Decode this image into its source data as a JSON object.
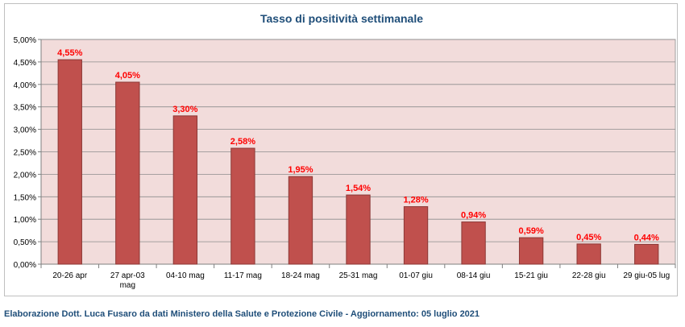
{
  "chart_data": {
    "type": "bar",
    "title": "Tasso di positività settimanale",
    "categories": [
      "20-26 apr",
      "27 apr-03 mag",
      "04-10 mag",
      "11-17 mag",
      "18-24 mag",
      "25-31 mag",
      "01-07 giu",
      "08-14 giu",
      "15-21 giu",
      "22-28 giu",
      "29 giu-05 lug"
    ],
    "category_lines": [
      [
        "20-26 apr"
      ],
      [
        "27 apr-03",
        "mag"
      ],
      [
        "04-10 mag"
      ],
      [
        "11-17 mag"
      ],
      [
        "18-24 mag"
      ],
      [
        "25-31 mag"
      ],
      [
        "01-07 giu"
      ],
      [
        "08-14 giu"
      ],
      [
        "15-21 giu"
      ],
      [
        "22-28 giu"
      ],
      [
        "29 giu-05 lug"
      ]
    ],
    "values": [
      4.55,
      4.05,
      3.3,
      2.58,
      1.95,
      1.54,
      1.28,
      0.94,
      0.59,
      0.45,
      0.44
    ],
    "data_labels": [
      "4,55%",
      "4,05%",
      "3,30%",
      "2,58%",
      "1,95%",
      "1,54%",
      "1,28%",
      "0,94%",
      "0,59%",
      "0,45%",
      "0,44%"
    ],
    "ylim": [
      0,
      5
    ],
    "yticks": [
      0,
      0.5,
      1,
      1.5,
      2,
      2.5,
      3,
      3.5,
      4,
      4.5,
      5
    ],
    "ytick_labels": [
      "0,00%",
      "0,50%",
      "1,00%",
      "1,50%",
      "2,00%",
      "2,50%",
      "3,00%",
      "3,50%",
      "4,00%",
      "4,50%",
      "5,00%"
    ],
    "xlabel": "",
    "ylabel": "",
    "grid": true,
    "colors": {
      "bar_fill": "#c0504d",
      "bar_stroke": "#8c3836",
      "plot_background": "#f2dcdb",
      "data_label": "#ff0000",
      "title": "#1f4e79",
      "axis_text": "#000000"
    }
  },
  "footer": {
    "credit": "Elaborazione Dott. Luca Fusaro da dati Ministero della Salute e Protezione Civile - Aggiornamento: 05 luglio 2021"
  }
}
